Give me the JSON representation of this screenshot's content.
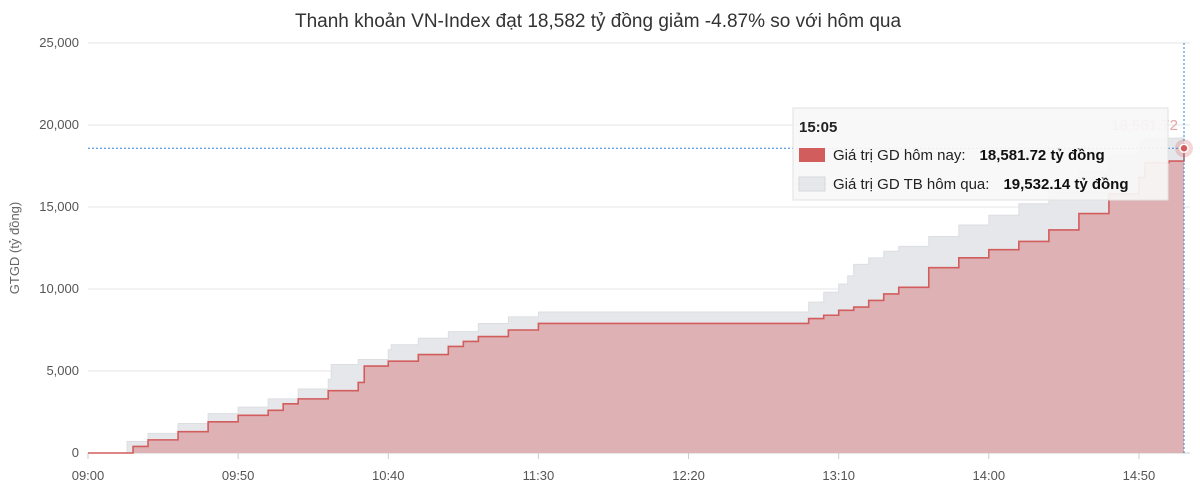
{
  "chart_data": {
    "type": "area",
    "title": "Thanh khoản VN-Index đạt 18,582 tỷ đồng giảm -4.87% so với hôm qua",
    "ylabel": "GTGD (tỷ đồng)",
    "xlabel": "",
    "ylim": [
      0,
      25000
    ],
    "yticks": [
      0,
      5000,
      10000,
      15000,
      20000,
      25000
    ],
    "ytick_labels": [
      "0",
      "5,000",
      "10,000",
      "15,000",
      "20,000",
      "25,000"
    ],
    "xtick_labels": [
      "09:00",
      "09:50",
      "10:40",
      "11:30",
      "12:20",
      "13:10",
      "14:00",
      "14:50"
    ],
    "grid": true,
    "series": [
      {
        "name": "Giá trị GD TB hôm qua",
        "color": "#e5e7ea",
        "x": [
          "09:00",
          "09:13",
          "09:20",
          "09:30",
          "09:40",
          "09:50",
          "10:00",
          "10:10",
          "10:20",
          "10:21",
          "10:30",
          "10:40",
          "10:41",
          "10:50",
          "11:00",
          "11:10",
          "11:20",
          "11:30",
          "11:40",
          "12:00",
          "12:20",
          "12:40",
          "12:50",
          "12:55",
          "13:00",
          "13:05",
          "13:10",
          "13:13",
          "13:15",
          "13:20",
          "13:25",
          "13:30",
          "13:40",
          "13:50",
          "14:00",
          "14:10",
          "14:20",
          "14:30",
          "14:40",
          "14:50",
          "14:52",
          "15:05"
        ],
        "values": [
          0,
          700,
          1200,
          1800,
          2400,
          2800,
          3300,
          3900,
          4500,
          5400,
          5700,
          6300,
          6600,
          7000,
          7400,
          7900,
          8300,
          8600,
          8600,
          8600,
          8600,
          8600,
          8600,
          8600,
          9200,
          9800,
          10300,
          10800,
          11500,
          11900,
          12300,
          12600,
          13200,
          13900,
          14500,
          15200,
          16200,
          17200,
          18200,
          19000,
          19200,
          19532.14
        ]
      },
      {
        "name": "Giá trị GD hôm nay",
        "color": "#d25d5d",
        "x": [
          "09:00",
          "09:13",
          "09:15",
          "09:20",
          "09:30",
          "09:40",
          "09:50",
          "10:00",
          "10:05",
          "10:10",
          "10:20",
          "10:30",
          "10:32",
          "10:40",
          "10:50",
          "11:00",
          "11:05",
          "11:10",
          "11:20",
          "11:30",
          "11:40",
          "12:00",
          "12:20",
          "12:40",
          "12:50",
          "12:55",
          "13:00",
          "13:05",
          "13:10",
          "13:15",
          "13:20",
          "13:25",
          "13:30",
          "13:40",
          "13:50",
          "14:00",
          "14:10",
          "14:20",
          "14:30",
          "14:40",
          "14:50",
          "14:52",
          "15:00",
          "15:05"
        ],
        "values": [
          0,
          0,
          400,
          800,
          1300,
          1900,
          2300,
          2600,
          3000,
          3300,
          3800,
          4300,
          5300,
          5600,
          6000,
          6500,
          6800,
          7100,
          7500,
          7900,
          7900,
          7900,
          7900,
          7900,
          7900,
          7900,
          8200,
          8400,
          8700,
          8900,
          9300,
          9700,
          10100,
          11300,
          11900,
          12400,
          12900,
          13600,
          14600,
          15800,
          16800,
          17700,
          17800,
          18581.72
        ]
      }
    ],
    "tooltip": {
      "time": "15:05",
      "rows": [
        {
          "label": "Giá trị GD hôm nay:",
          "value": "18,581.72 tỷ đồng",
          "color": "#d25d5d"
        },
        {
          "label": "Giá trị GD TB hôm qua:",
          "value": "19,532.14 tỷ đồng",
          "color": "#e5e7ea"
        }
      ]
    },
    "crosshair": {
      "x": "15:05",
      "y": 18581.72,
      "label": "18,581.72",
      "color": "#2e86de"
    }
  }
}
